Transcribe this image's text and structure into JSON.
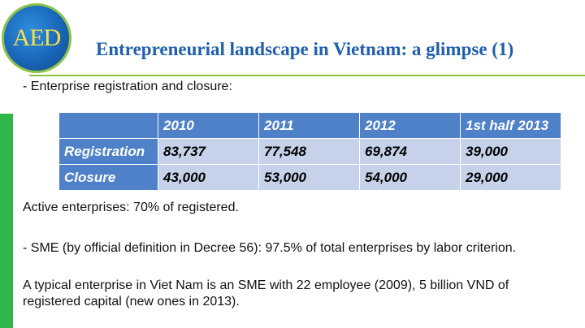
{
  "logo": {
    "text": "AED"
  },
  "slide": {
    "title": "Entrepreneurial landscape in Vietnam: a glimpse (1)",
    "subtitle": "- Enterprise registration and closure:"
  },
  "table": {
    "headers": [
      "",
      "2010",
      "2011",
      "2012",
      "1st half 2013"
    ],
    "rows": [
      {
        "label": "Registration",
        "values": [
          "83,737",
          "77,548",
          "69,874",
          "39,000"
        ]
      },
      {
        "label": "Closure",
        "values": [
          "43,000",
          "53,000",
          "54,000",
          "29,000"
        ]
      }
    ]
  },
  "notes": {
    "active": "Active enterprises: 70% of registered.",
    "sme": "- SME (by official definition in Decree 56): 97.5% of total enterprises by labor criterion.",
    "typical": "A typical enterprise in Viet Nam is an SME with 22 employee (2009), 5 billion VND of registered capital (new ones in 2013)."
  },
  "colors": {
    "title": "#1f5fae",
    "accent_green": "#2eb84a",
    "table_header": "#4f81c9",
    "table_cell": "#c6d2ea"
  }
}
